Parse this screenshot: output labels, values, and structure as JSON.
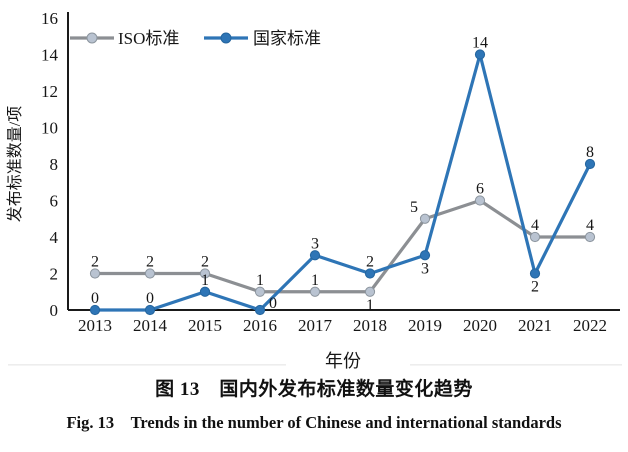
{
  "figure": {
    "caption_zh": "图 13　国内外发布标准数量变化趋势",
    "caption_en": "Fig. 13 Trends in the number of Chinese and international standards"
  },
  "chart_data": {
    "type": "line",
    "categories": [
      "2013",
      "2014",
      "2015",
      "2016",
      "2017",
      "2018",
      "2019",
      "2020",
      "2021",
      "2022"
    ],
    "series": [
      {
        "name": "ISO标准",
        "color": "#8C8F93",
        "marker_fill": "#B9C3D1",
        "marker_stroke": "#8C959E",
        "values": [
          2,
          2,
          2,
          1,
          1,
          1,
          5,
          6,
          4,
          4
        ],
        "label_positions": [
          "above",
          "above",
          "above",
          "above",
          "above",
          "below",
          "above-left",
          "above",
          "above",
          "above"
        ]
      },
      {
        "name": "国家标准",
        "color": "#2E75B6",
        "marker_fill": "#2E75B6",
        "marker_stroke": "#24659E",
        "values": [
          0,
          0,
          1,
          0,
          3,
          2,
          3,
          14,
          2,
          8
        ],
        "label_positions": [
          "above",
          "above",
          "above",
          "right",
          "above",
          "above",
          "below",
          "above",
          "below",
          "above"
        ]
      }
    ],
    "xlabel": "年份",
    "ylabel": "发布标准数量/项",
    "ylim": [
      0,
      16
    ],
    "ytick_step": 2,
    "grid": false,
    "legend_position": "top-left",
    "axis_color": "#1a1a1a"
  }
}
